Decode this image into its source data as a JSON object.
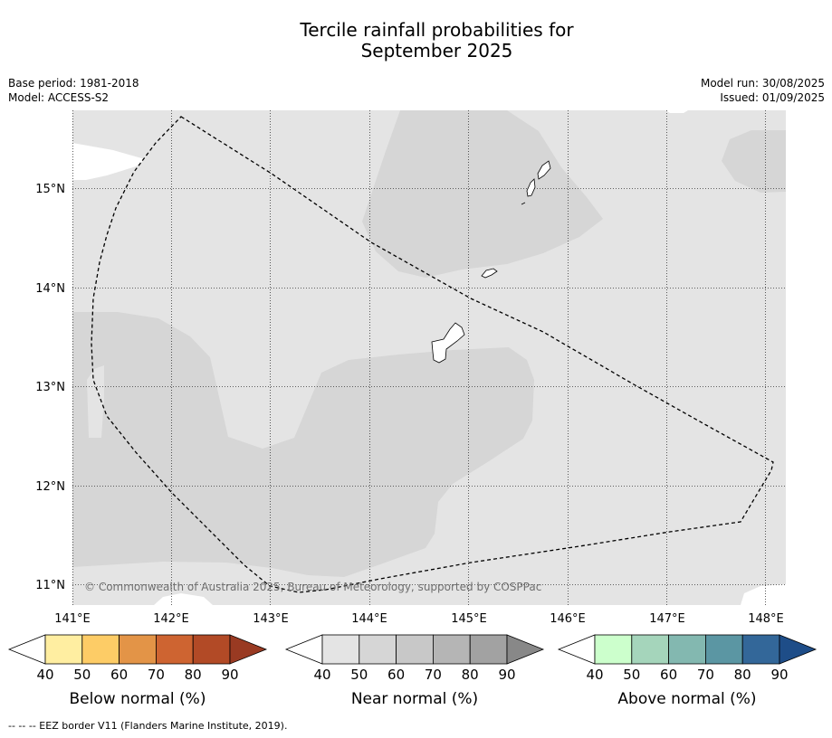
{
  "title": {
    "line1": "Tercile rainfall probabilities for",
    "line2": "September 2025"
  },
  "meta": {
    "base_period": "Base period: 1981-2018",
    "model": "Model: ACCESS-S2",
    "model_run": "Model run: 30/08/2025",
    "issued": "Issued: 01/09/2025"
  },
  "map": {
    "lat_labels": [
      "15°N",
      "14°N",
      "13°N",
      "12°N",
      "11°N"
    ],
    "lon_labels": [
      "141°E",
      "142°E",
      "143°E",
      "144°E",
      "145°E",
      "146°E",
      "147°E",
      "148°E"
    ],
    "copyright": "© Commonwealth of Australia 2025, Bureau of Meteorology, supported by COSPPac",
    "colors": {
      "near_normal_40_50": "#e4e4e4",
      "near_normal_50_60": "#d6d6d6",
      "no_signal": "#ffffff",
      "eez_line": "#000000"
    }
  },
  "legends": [
    {
      "id": "below",
      "title": "Below normal (%)",
      "ticks": [
        "40",
        "50",
        "60",
        "70",
        "80",
        "90"
      ],
      "colors": [
        "#ffffff",
        "#ffeea1",
        "#fdcc66",
        "#e39447",
        "#ce6431",
        "#b24a26",
        "#993a22"
      ]
    },
    {
      "id": "near",
      "title": "Near normal (%)",
      "ticks": [
        "40",
        "50",
        "60",
        "70",
        "80",
        "90"
      ],
      "colors": [
        "#ffffff",
        "#e4e4e4",
        "#d6d6d6",
        "#c8c8c8",
        "#b5b5b5",
        "#a2a2a2",
        "#888888"
      ]
    },
    {
      "id": "above",
      "title": "Above normal (%)",
      "ticks": [
        "40",
        "50",
        "60",
        "70",
        "80",
        "90"
      ],
      "colors": [
        "#ffffff",
        "#ccffcc",
        "#a5d5bb",
        "#83b8b0",
        "#5b96a3",
        "#336799",
        "#1e4d88"
      ]
    }
  ],
  "footnote": "-- -- -- EEZ border V11 (Flanders Marine Institute, 2019)."
}
